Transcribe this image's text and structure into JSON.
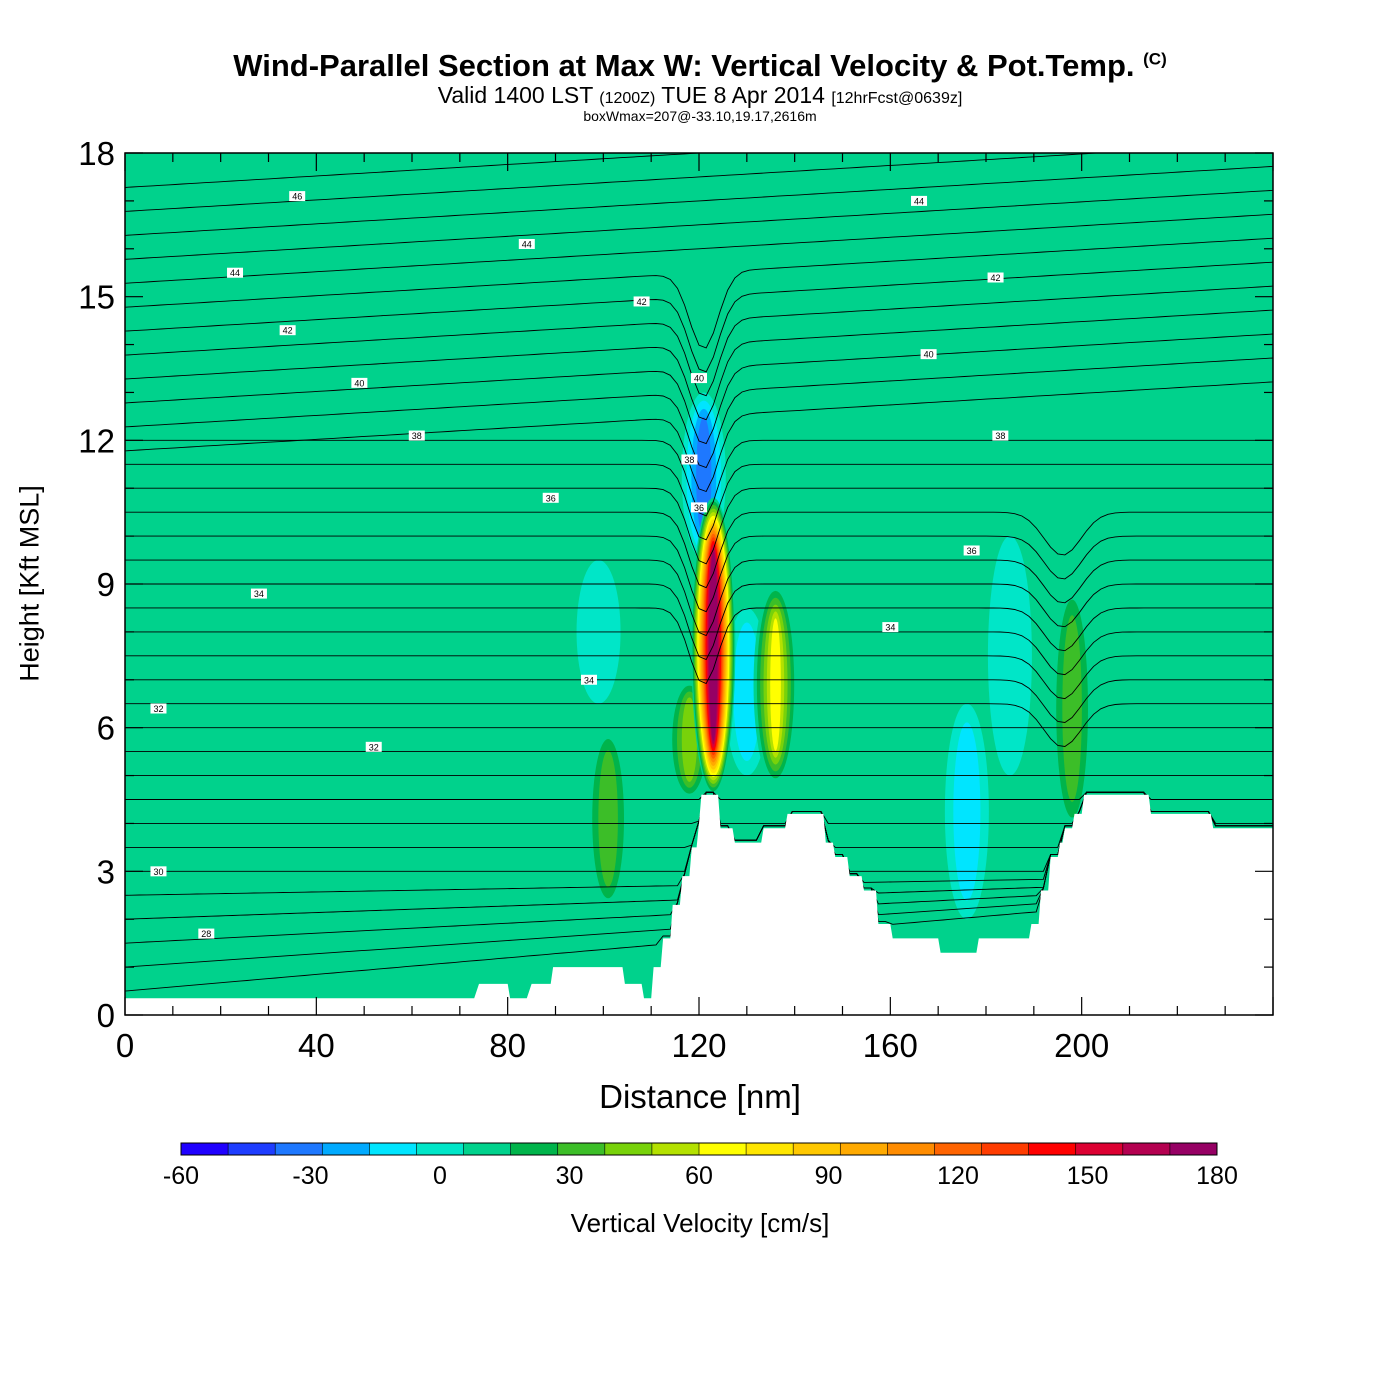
{
  "title": "Wind-Parallel Section at Max W: Vertical Velocity & Pot.Temp.",
  "title_mark": "(C)",
  "subtitle": {
    "valid": "Valid 1400 LST",
    "zulu": "(1200Z)",
    "date": "TUE 8 Apr 2014",
    "forecast": "[12hrFcst@0639z]"
  },
  "subsubtitle": "boxWmax=207@-33.10,19.17,2616m",
  "chart_data": {
    "type": "heatmap",
    "title": "Wind-Parallel Section at Max W: Vertical Velocity & Pot.Temp.",
    "xlabel": "Distance [nm]",
    "ylabel": "Height [Kft MSL]",
    "xlim": [
      0,
      240
    ],
    "ylim": [
      0,
      18
    ],
    "x_ticks": [
      "0",
      "40",
      "80",
      "120",
      "160",
      "200"
    ],
    "x_tick_values": [
      0,
      40,
      80,
      120,
      160,
      200
    ],
    "y_ticks": [
      "0",
      "3",
      "6",
      "9",
      "12",
      "15",
      "18"
    ],
    "y_tick_values": [
      0,
      3,
      6,
      9,
      12,
      15,
      18
    ],
    "background_w": 0,
    "w_features": [
      {
        "x": 123,
        "y_from": 4.6,
        "y_to": 10.8,
        "w": 180
      },
      {
        "x": 121,
        "y_from": 9.5,
        "y_to": 13.0,
        "w": -40
      },
      {
        "x": 136,
        "y_from": 4.8,
        "y_to": 9.0,
        "w": 60
      },
      {
        "x": 118,
        "y_from": 4.5,
        "y_to": 7.0,
        "w": 40
      },
      {
        "x": 130,
        "y_from": 5.0,
        "y_to": 8.5,
        "w": -20
      },
      {
        "x": 101,
        "y_from": 2.2,
        "y_to": 6.0,
        "w": 30
      },
      {
        "x": 99,
        "y_from": 6.5,
        "y_to": 9.5,
        "w": -10
      },
      {
        "x": 198,
        "y_from": 3.8,
        "y_to": 9.0,
        "w": 30
      },
      {
        "x": 185,
        "y_from": 5.0,
        "y_to": 10.0,
        "w": -10
      },
      {
        "x": 176,
        "y_from": 2.0,
        "y_to": 6.5,
        "w": -20
      },
      {
        "x": 18,
        "y_from": 1.5,
        "y_to": 5.5,
        "w": 10
      },
      {
        "x": 210,
        "y_from": 14.0,
        "y_to": 18.0,
        "w": 10
      },
      {
        "x": 57,
        "y_from": 7.5,
        "y_to": 12.0,
        "w": 10
      }
    ],
    "terrain_kft": [
      [
        0,
        0.35
      ],
      [
        73,
        0.35
      ],
      [
        74,
        0.65
      ],
      [
        80,
        0.65
      ],
      [
        80.5,
        0.35
      ],
      [
        84,
        0.35
      ],
      [
        85,
        0.65
      ],
      [
        89,
        0.65
      ],
      [
        89.5,
        1.0
      ],
      [
        104,
        1.0
      ],
      [
        104.5,
        0.65
      ],
      [
        108,
        0.65
      ],
      [
        108.5,
        0.35
      ],
      [
        110,
        0.35
      ],
      [
        110.5,
        1.0
      ],
      [
        112,
        1.0
      ],
      [
        112.5,
        1.6
      ],
      [
        114,
        1.6
      ],
      [
        114.5,
        2.3
      ],
      [
        116,
        2.3
      ],
      [
        116.5,
        2.9
      ],
      [
        118,
        2.9
      ],
      [
        118.5,
        3.5
      ],
      [
        119.5,
        3.5
      ],
      [
        120,
        4.0
      ],
      [
        120.5,
        4.6
      ],
      [
        124,
        4.6
      ],
      [
        124.5,
        3.9
      ],
      [
        127,
        3.9
      ],
      [
        127.5,
        3.6
      ],
      [
        133,
        3.6
      ],
      [
        133.5,
        3.9
      ],
      [
        138,
        3.9
      ],
      [
        138.5,
        4.2
      ],
      [
        146,
        4.2
      ],
      [
        146.5,
        3.6
      ],
      [
        148,
        3.6
      ],
      [
        148.5,
        3.3
      ],
      [
        151,
        3.3
      ],
      [
        151.5,
        2.9
      ],
      [
        154,
        2.9
      ],
      [
        154.5,
        2.6
      ],
      [
        157,
        2.6
      ],
      [
        157.5,
        1.9
      ],
      [
        160,
        1.9
      ],
      [
        160.5,
        1.6
      ],
      [
        170,
        1.6
      ],
      [
        170.5,
        1.3
      ],
      [
        178,
        1.3
      ],
      [
        178.5,
        1.6
      ],
      [
        189,
        1.6
      ],
      [
        189.5,
        1.9
      ],
      [
        191,
        1.9
      ],
      [
        191.5,
        2.6
      ],
      [
        193,
        2.6
      ],
      [
        193.5,
        3.3
      ],
      [
        195,
        3.3
      ],
      [
        195.5,
        3.6
      ],
      [
        196,
        3.6
      ],
      [
        196.5,
        3.9
      ],
      [
        198,
        3.9
      ],
      [
        198.5,
        4.2
      ],
      [
        200,
        4.2
      ],
      [
        200.5,
        4.6
      ],
      [
        214,
        4.6
      ],
      [
        214.5,
        4.2
      ],
      [
        227,
        4.2
      ],
      [
        227.5,
        3.9
      ],
      [
        240,
        3.9
      ]
    ],
    "contour_labels": [
      {
        "text": "46",
        "x": 36,
        "y": 17.1
      },
      {
        "text": "44",
        "x": 23,
        "y": 15.5
      },
      {
        "text": "44",
        "x": 84,
        "y": 16.1
      },
      {
        "text": "44",
        "x": 166,
        "y": 17.0
      },
      {
        "text": "42",
        "x": 34,
        "y": 14.3
      },
      {
        "text": "42",
        "x": 108,
        "y": 14.9
      },
      {
        "text": "42",
        "x": 182,
        "y": 15.4
      },
      {
        "text": "40",
        "x": 49,
        "y": 13.2
      },
      {
        "text": "40",
        "x": 120,
        "y": 13.3
      },
      {
        "text": "40",
        "x": 168,
        "y": 13.8
      },
      {
        "text": "38",
        "x": 61,
        "y": 12.1
      },
      {
        "text": "38",
        "x": 118,
        "y": 11.6
      },
      {
        "text": "38",
        "x": 183,
        "y": 12.1
      },
      {
        "text": "36",
        "x": 89,
        "y": 10.8
      },
      {
        "text": "36",
        "x": 120,
        "y": 10.6
      },
      {
        "text": "36",
        "x": 177,
        "y": 9.7
      },
      {
        "text": "34",
        "x": 28,
        "y": 8.8
      },
      {
        "text": "34",
        "x": 97,
        "y": 7.0
      },
      {
        "text": "34",
        "x": 160,
        "y": 8.1
      },
      {
        "text": "32",
        "x": 7,
        "y": 6.4
      },
      {
        "text": "32",
        "x": 52,
        "y": 5.6
      },
      {
        "text": "30",
        "x": 7,
        "y": 3.0
      },
      {
        "text": "28",
        "x": 17,
        "y": 1.7
      }
    ],
    "colorbar": {
      "min": -60,
      "max": 180,
      "step": 10,
      "colors": [
        "#1f00ff",
        "#1e3dff",
        "#1e78ff",
        "#00aaff",
        "#00e5ff",
        "#00e6c8",
        "#00d28c",
        "#00b44b",
        "#3cbe28",
        "#78d20a",
        "#b4e100",
        "#ffff00",
        "#ffe600",
        "#ffc800",
        "#ffaa00",
        "#ff8c00",
        "#ff6400",
        "#ff3c00",
        "#ff0000",
        "#dc0032",
        "#b40050",
        "#960064"
      ],
      "tick_labels": [
        "-60",
        "-30",
        "0",
        "30",
        "60",
        "90",
        "120",
        "150",
        "180"
      ],
      "tick_values": [
        -60,
        -30,
        0,
        30,
        60,
        90,
        120,
        150,
        180
      ],
      "label": "Vertical Velocity [cm/s]"
    }
  }
}
